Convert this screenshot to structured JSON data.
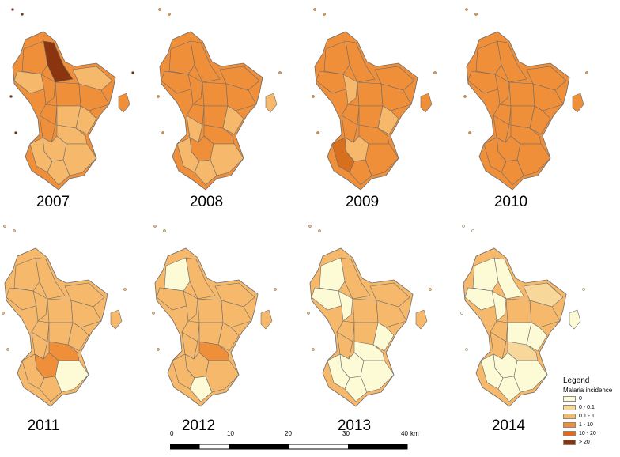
{
  "colors": {
    "c0": "#fdfbd5",
    "c1": "#f8d89a",
    "c2": "#f6b86b",
    "c3": "#ef8f3a",
    "c4": "#d86f1f",
    "c5": "#8a3410",
    "outline": "#6b6b6b"
  },
  "panels": [
    {
      "year": "2007",
      "fills": [
        "c5",
        "c3",
        "c2",
        "c2",
        "c3",
        "c3",
        "c3",
        "c3",
        "c2",
        "c2",
        "c3",
        "c2",
        "c2",
        "c2",
        "c2",
        "c2",
        "c3"
      ]
    },
    {
      "year": "2008",
      "fills": [
        "c3",
        "c3",
        "c3",
        "c3",
        "c3",
        "c3",
        "c3",
        "c3",
        "c3",
        "c2",
        "c2",
        "c3",
        "c3",
        "c2",
        "c2",
        "c2",
        "c2"
      ]
    },
    {
      "year": "2009",
      "fills": [
        "c3",
        "c3",
        "c3",
        "c3",
        "c2",
        "c3",
        "c3",
        "c3",
        "c3",
        "c2",
        "c3",
        "c3",
        "c2",
        "c4",
        "c3",
        "c3",
        "c3"
      ]
    },
    {
      "year": "2010",
      "fills": [
        "c3",
        "c3",
        "c3",
        "c3",
        "c3",
        "c3",
        "c3",
        "c3",
        "c3",
        "c3",
        "c3",
        "c3",
        "c3",
        "c3",
        "c3",
        "c3",
        "c3"
      ]
    },
    {
      "year": "2011",
      "fills": [
        "c2",
        "c2",
        "c2",
        "c2",
        "c2",
        "c2",
        "c2",
        "c2",
        "c2",
        "c2",
        "c2",
        "c3",
        "c3",
        "c2",
        "c2",
        "c0",
        "c2"
      ]
    },
    {
      "year": "2012",
      "fills": [
        "c2",
        "c0",
        "c2",
        "c2",
        "c2",
        "c2",
        "c2",
        "c2",
        "c2",
        "c2",
        "c2",
        "c3",
        "c2",
        "c2",
        "c0",
        "c2",
        "c2"
      ]
    },
    {
      "year": "2013",
      "fills": [
        "c2",
        "c0",
        "c0",
        "c2",
        "c0",
        "c2",
        "c2",
        "c2",
        "c2",
        "c0",
        "c2",
        "c0",
        "c0",
        "c0",
        "c0",
        "c0",
        "c2"
      ]
    },
    {
      "year": "2014",
      "fills": [
        "c0",
        "c0",
        "c0",
        "c1",
        "c0",
        "c2",
        "c2",
        "c2",
        "c0",
        "c0",
        "c2",
        "c1",
        "c0",
        "c0",
        "c0",
        "c0",
        "c0"
      ]
    }
  ],
  "legend": {
    "title": "Legend",
    "subtitle": "Malaria incidence",
    "items": [
      {
        "label": "0",
        "color": "c0"
      },
      {
        "label": "0 - 0.1",
        "color": "c1"
      },
      {
        "label": "0.1 - 1",
        "color": "c2"
      },
      {
        "label": "1 - 10",
        "color": "c3"
      },
      {
        "label": "10 - 20",
        "color": "c4"
      },
      {
        "label": "> 20",
        "color": "c5"
      }
    ]
  },
  "scalebar": {
    "ticks": [
      "0",
      "10",
      "20",
      "30",
      "40"
    ],
    "unit": "km"
  }
}
